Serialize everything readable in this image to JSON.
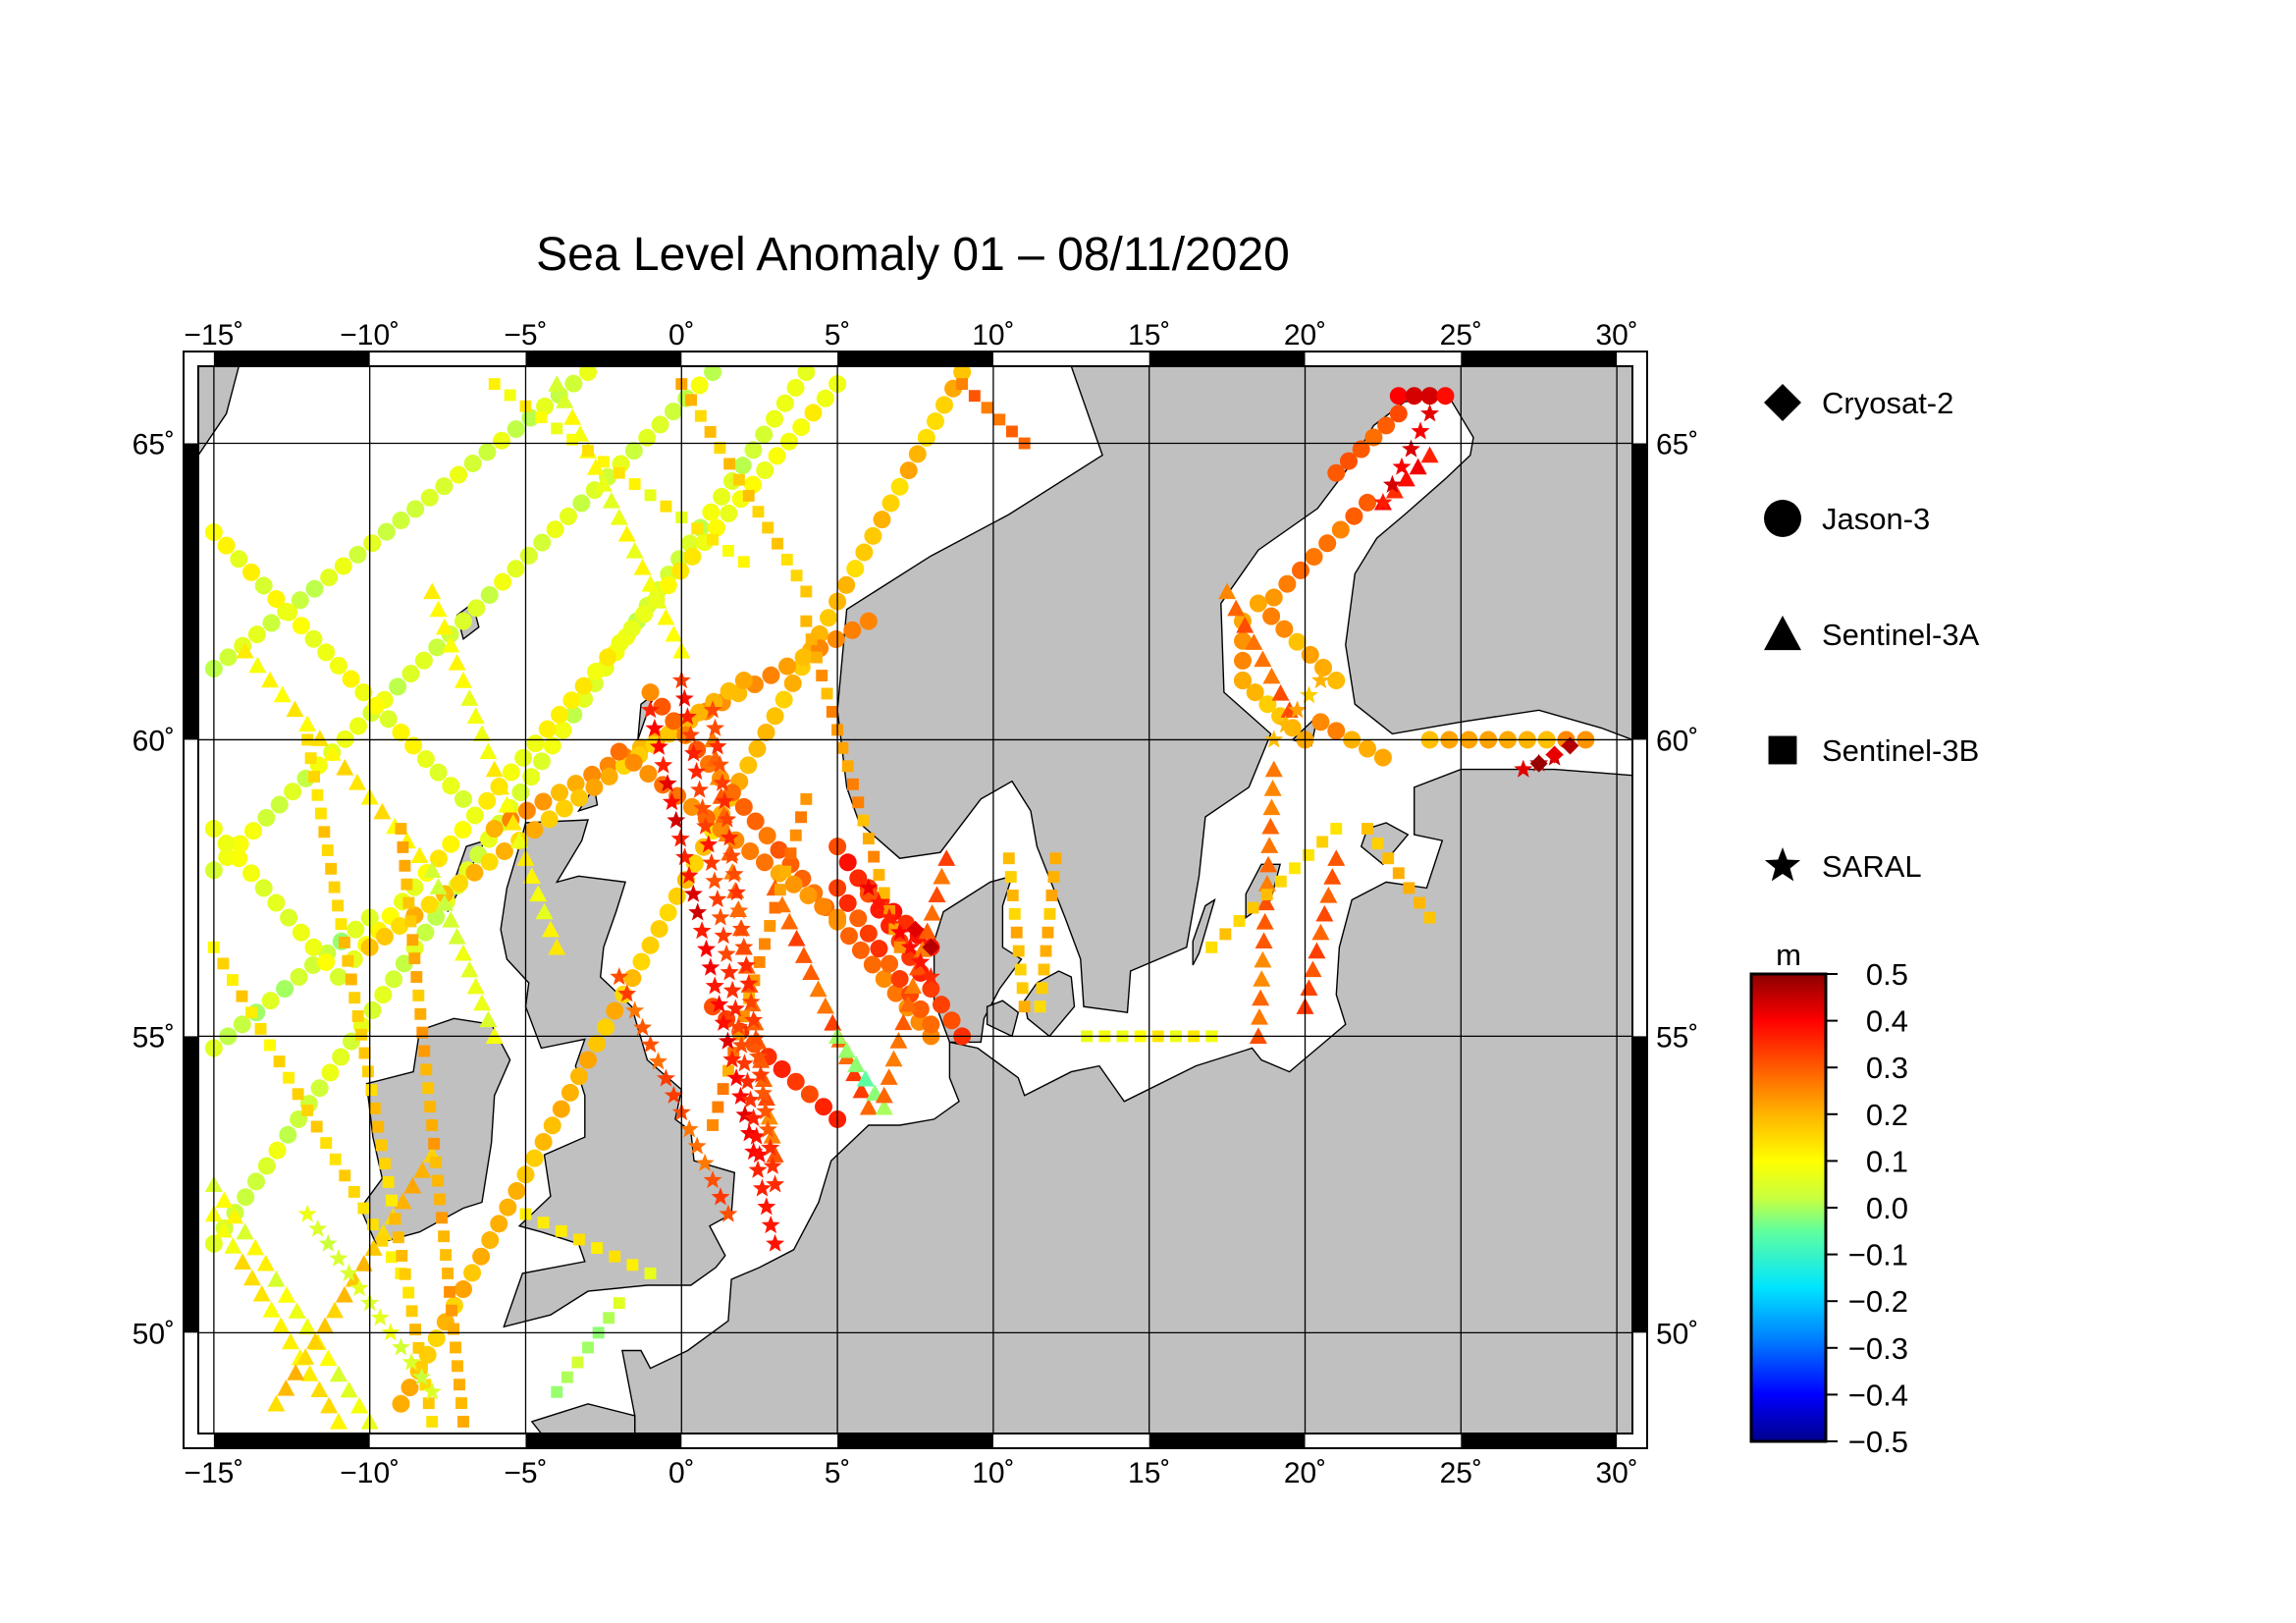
{
  "title": "Sea Level Anomaly 01 – 08/11/2020",
  "map": {
    "lon_range": [
      -15.5,
      30.5
    ],
    "lat_range": [
      48.3,
      66.3
    ],
    "lon_ticks": [
      -15,
      -10,
      -5,
      0,
      5,
      10,
      15,
      20,
      25,
      30
    ],
    "lat_ticks": [
      50,
      55,
      60,
      65
    ],
    "lon_tick_labels": [
      "−15˚",
      "−10˚",
      "−5˚",
      "0˚",
      "5˚",
      "10˚",
      "15˚",
      "20˚",
      "25˚",
      "30˚"
    ],
    "lat_tick_labels": [
      "50˚",
      "55˚",
      "60˚",
      "65˚"
    ],
    "land_color": "#c0c0c0",
    "sea_color": "#ffffff",
    "grid": true
  },
  "legend": {
    "items": [
      {
        "label": "Cryosat-2",
        "marker": "diamond"
      },
      {
        "label": "Jason-3",
        "marker": "circle"
      },
      {
        "label": "Sentinel-3A",
        "marker": "triangle"
      },
      {
        "label": "Sentinel-3B",
        "marker": "square"
      },
      {
        "label": "SARAL",
        "marker": "star"
      }
    ]
  },
  "colorbar": {
    "unit": "m",
    "min": -0.5,
    "max": 0.5,
    "tick_labels": [
      "0.5",
      "0.4",
      "0.3",
      "0.2",
      "0.1",
      "0.0",
      "−0.1",
      "−0.2",
      "−0.3",
      "−0.4",
      "−0.5"
    ],
    "colormap": [
      "#00008c",
      "#0000ff",
      "#0080ff",
      "#00e5ff",
      "#60ff9e",
      "#c8ff40",
      "#ffff00",
      "#ffb400",
      "#ff5a00",
      "#ff0000",
      "#8c0000"
    ]
  },
  "chart_data": {
    "type": "scatter",
    "title": "Sea Level Anomaly 01 – 08/11/2020",
    "xlabel": "",
    "ylabel": "",
    "xlim": [
      -15.5,
      30.5
    ],
    "ylim": [
      48.3,
      66.3
    ],
    "value_unit": "m",
    "value_range": [
      -0.5,
      0.5
    ],
    "series": [
      {
        "name": "Jason-3",
        "marker": "circle",
        "tracks": [
          {
            "from": [
              -15,
              61.2
            ],
            "to": [
              -3,
              66.2
            ],
            "value": 0.04
          },
          {
            "from": [
              -15,
              57.8
            ],
            "to": [
              1,
              66.2
            ],
            "value": 0.05
          },
          {
            "from": [
              -15,
              51.5
            ],
            "to": [
              4,
              66.2
            ],
            "value": 0.05
          },
          {
            "from": [
              -9,
              48.8
            ],
            "to": [
              9,
              66.2
            ],
            "value": 0.18
          },
          {
            "from": [
              -10.5,
              56.3
            ],
            "to": [
              5,
              66.0
            ],
            "value": 0.1
          },
          {
            "from": [
              -6,
              58.5
            ],
            "to": [
              6,
              62.0
            ],
            "value": 0.22
          },
          {
            "from": [
              -10,
              56.5
            ],
            "to": [
              2,
              61.0
            ],
            "value": 0.18
          },
          {
            "from": [
              -15,
              63.5
            ],
            "to": [
              -7,
              59.0
            ],
            "value": 0.08
          },
          {
            "from": [
              -15,
              54.8
            ],
            "to": [
              -10,
              57.0
            ],
            "value": 0.02
          },
          {
            "from": [
              -1,
              60.8
            ],
            "to": [
              8,
              55.0
            ],
            "value": 0.27
          },
          {
            "from": [
              6,
              57.5
            ],
            "to": [
              8,
              56.5
            ],
            "value": 0.35
          },
          {
            "from": [
              5,
              57.5
            ],
            "to": [
              8,
              55.2
            ],
            "value": 0.32
          },
          {
            "from": [
              -2,
              59.8
            ],
            "to": [
              5,
              57.0
            ],
            "value": 0.25
          },
          {
            "from": [
              5,
              58.2
            ],
            "to": [
              9,
              55.0
            ],
            "value": 0.35
          },
          {
            "from": [
              1,
              55.5
            ],
            "to": [
              5,
              53.6
            ],
            "value": 0.33
          },
          {
            "from": [
              23,
              65.8
            ],
            "to": [
              24.5,
              65.8
            ],
            "value": 0.4
          },
          {
            "from": [
              23,
              65.5
            ],
            "to": [
              21,
              64.5
            ],
            "value": 0.3
          },
          {
            "from": [
              22,
              64.0
            ],
            "to": [
              19,
              62.4
            ],
            "value": 0.26
          },
          {
            "from": [
              18,
              62.0
            ],
            "to": [
              18,
              61.0
            ],
            "value": 0.24
          },
          {
            "from": [
              18.5,
              62.3
            ],
            "to": [
              21,
              61.0
            ],
            "value": 0.22
          },
          {
            "from": [
              18,
              61.0
            ],
            "to": [
              20,
              60.0
            ],
            "value": 0.2
          },
          {
            "from": [
              20.5,
              60.3
            ],
            "to": [
              22.5,
              59.7
            ],
            "value": 0.22
          },
          {
            "from": [
              24,
              60.0
            ],
            "to": [
              29,
              60.0
            ],
            "value": 0.22
          },
          {
            "from": [
              -11,
              56.0
            ],
            "to": [
              -15,
              58.5
            ],
            "value": 0.06
          }
        ]
      },
      {
        "name": "Sentinel-3A",
        "marker": "triangle",
        "tracks": [
          {
            "from": [
              -15,
              52.0
            ],
            "to": [
              -11,
              48.5
            ],
            "value": 0.12
          },
          {
            "from": [
              -10,
              48.5
            ],
            "to": [
              -15,
              52.5
            ],
            "value": 0.08
          },
          {
            "from": [
              -14,
              61.5
            ],
            "to": [
              -8,
              57.8
            ],
            "value": 0.12
          },
          {
            "from": [
              -8,
              62.5
            ],
            "to": [
              -4,
              56.5
            ],
            "value": 0.1
          },
          {
            "from": [
              -4,
              66.0
            ],
            "to": [
              0,
              61.5
            ],
            "value": 0.08
          },
          {
            "from": [
              1,
              60.0
            ],
            "to": [
              3,
              53.0
            ],
            "value": 0.28
          },
          {
            "from": [
              3,
              57.5
            ],
            "to": [
              6,
              53.8
            ],
            "value": 0.3
          },
          {
            "from": [
              5,
              55.0
            ],
            "to": [
              6.5,
              53.8
            ],
            "value": -0.02
          },
          {
            "from": [
              8.5,
              58.0
            ],
            "to": [
              6.5,
              54.0
            ],
            "value": 0.3
          },
          {
            "from": [
              17.5,
              62.5
            ],
            "to": [
              19.5,
              60.5
            ],
            "value": 0.28
          },
          {
            "from": [
              19,
              59.5
            ],
            "to": [
              18.5,
              55.0
            ],
            "value": 0.28
          },
          {
            "from": [
              21,
              58.0
            ],
            "to": [
              20,
              55.5
            ],
            "value": 0.3
          },
          {
            "from": [
              22.5,
              64.0
            ],
            "to": [
              24,
              64.8
            ],
            "value": 0.38
          },
          {
            "from": [
              -13,
              48.8
            ],
            "to": [
              -8,
              53.0
            ],
            "value": 0.18
          },
          {
            "from": [
              -8,
              57.8
            ],
            "to": [
              -6,
              55.0
            ],
            "value": 0.06
          }
        ]
      },
      {
        "name": "Sentinel-3B",
        "marker": "square",
        "tracks": [
          {
            "from": [
              -15,
              56.5
            ],
            "to": [
              -9,
              51.0
            ],
            "value": 0.14
          },
          {
            "from": [
              -12,
              60.0
            ],
            "to": [
              -8,
              48.5
            ],
            "value": 0.16
          },
          {
            "from": [
              -9,
              58.5
            ],
            "to": [
              -7,
              48.5
            ],
            "value": 0.2
          },
          {
            "from": [
              -6,
              66.0
            ],
            "to": [
              2,
              63.0
            ],
            "value": 0.1
          },
          {
            "from": [
              0,
              66.0
            ],
            "to": [
              4,
              62.5
            ],
            "value": 0.18
          },
          {
            "from": [
              4,
              62.0
            ],
            "to": [
              7,
              56.5
            ],
            "value": 0.22
          },
          {
            "from": [
              4,
              59.0
            ],
            "to": [
              1,
              53.5
            ],
            "value": 0.24
          },
          {
            "from": [
              10.5,
              58.0
            ],
            "to": [
              11,
              55.5
            ],
            "value": 0.18
          },
          {
            "from": [
              12,
              58.0
            ],
            "to": [
              11.5,
              55.5
            ],
            "value": 0.18
          },
          {
            "from": [
              13,
              55.0
            ],
            "to": [
              17,
              55.0
            ],
            "value": 0.1
          },
          {
            "from": [
              17,
              56.5
            ],
            "to": [
              21,
              58.5
            ],
            "value": 0.16
          },
          {
            "from": [
              22,
              58.5
            ],
            "to": [
              24,
              57.0
            ],
            "value": 0.18
          },
          {
            "from": [
              -5,
              52.0
            ],
            "to": [
              -1,
              51.0
            ],
            "value": 0.1
          },
          {
            "from": [
              -2,
              50.5
            ],
            "to": [
              -4,
              49.0
            ],
            "value": 0.02
          },
          {
            "from": [
              9,
              66.0
            ],
            "to": [
              11,
              65.0
            ],
            "value": 0.28
          }
        ]
      },
      {
        "name": "SARAL",
        "marker": "star",
        "tracks": [
          {
            "from": [
              -1,
              60.5
            ],
            "to": [
              3,
              51.5
            ],
            "value": 0.4
          },
          {
            "from": [
              0,
              61.0
            ],
            "to": [
              2.5,
              53.0
            ],
            "value": 0.35
          },
          {
            "from": [
              1,
              60.5
            ],
            "to": [
              3,
              52.5
            ],
            "value": 0.32
          },
          {
            "from": [
              -2,
              56.0
            ],
            "to": [
              1.5,
              52.0
            ],
            "value": 0.3
          },
          {
            "from": [
              6,
              57.5
            ],
            "to": [
              8,
              56.0
            ],
            "value": 0.38
          },
          {
            "from": [
              22.5,
              64.0
            ],
            "to": [
              24,
              65.5
            ],
            "value": 0.4
          },
          {
            "from": [
              19,
              60.0
            ],
            "to": [
              20.5,
              61.0
            ],
            "value": 0.2
          },
          {
            "from": [
              27,
              59.5
            ],
            "to": [
              28,
              59.7
            ],
            "value": 0.42
          },
          {
            "from": [
              -12,
              52.0
            ],
            "to": [
              -8,
              49.0
            ],
            "value": 0.05
          }
        ]
      },
      {
        "name": "Cryosat-2",
        "marker": "diamond",
        "tracks": [
          {
            "from": [
              27.5,
              59.6
            ],
            "to": [
              28.5,
              59.9
            ],
            "value": 0.45
          },
          {
            "from": [
              7.5,
              56.8
            ],
            "to": [
              8.0,
              56.5
            ],
            "value": 0.45
          }
        ]
      }
    ]
  }
}
